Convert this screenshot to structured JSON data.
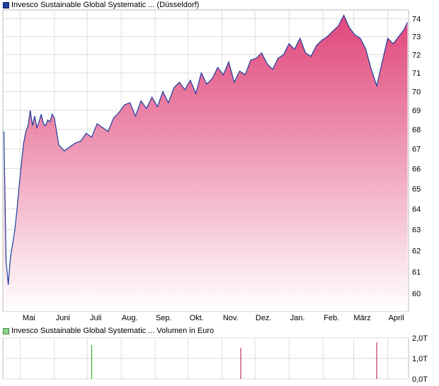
{
  "colors": {
    "price_line": "#1d3e9e",
    "area_top": "#e0457a",
    "area_bottom": "#ffffff",
    "grid": "#dedede",
    "volume_positive": "#2fb52f",
    "volume_negative": "#c0306a"
  },
  "chart_data": [
    {
      "type": "area",
      "title": "Invesco Sustainable Global Systematic ... (Düsseldorf)",
      "xlabel": "",
      "ylabel": "",
      "x_ticks": [
        "Mai",
        "Juni",
        "Juli",
        "Aug.",
        "Sep.",
        "Okt.",
        "Nov.",
        "Dez.",
        "Jan.",
        "Feb.",
        "März",
        "April"
      ],
      "y_ticks": [
        "60",
        "61",
        "62",
        "63",
        "64",
        "65",
        "66",
        "67",
        "68",
        "69",
        "70",
        "71",
        "72",
        "73",
        "74"
      ],
      "scale": "log",
      "ylim": [
        59.2,
        74.5
      ],
      "grid": true,
      "series": [
        {
          "name": "Invesco Sustainable Global Systematic ... (Düsseldorf)",
          "x": [
            "2024-04-16",
            "2024-04-18",
            "2024-04-20",
            "2024-04-22",
            "2024-04-24",
            "2024-04-26",
            "2024-04-28",
            "2024-04-30",
            "2024-05-02",
            "2024-05-04",
            "2024-05-06",
            "2024-05-08",
            "2024-05-10",
            "2024-05-12",
            "2024-05-14",
            "2024-05-16",
            "2024-05-18",
            "2024-05-20",
            "2024-05-22",
            "2024-05-24",
            "2024-05-26",
            "2024-05-28",
            "2024-05-30",
            "2024-06-01",
            "2024-06-05",
            "2024-06-10",
            "2024-06-15",
            "2024-06-20",
            "2024-06-25",
            "2024-06-30",
            "2024-07-05",
            "2024-07-10",
            "2024-07-15",
            "2024-07-20",
            "2024-07-25",
            "2024-07-30",
            "2024-08-04",
            "2024-08-09",
            "2024-08-14",
            "2024-08-19",
            "2024-08-24",
            "2024-08-29",
            "2024-09-03",
            "2024-09-08",
            "2024-09-13",
            "2024-09-18",
            "2024-09-23",
            "2024-09-28",
            "2024-10-03",
            "2024-10-08",
            "2024-10-13",
            "2024-10-18",
            "2024-10-23",
            "2024-10-28",
            "2024-11-02",
            "2024-11-07",
            "2024-11-12",
            "2024-11-17",
            "2024-11-22",
            "2024-11-27",
            "2024-12-02",
            "2024-12-07",
            "2024-12-12",
            "2024-12-17",
            "2024-12-22",
            "2024-12-27",
            "2025-01-01",
            "2025-01-06",
            "2025-01-11",
            "2025-01-16",
            "2025-01-21",
            "2025-01-26",
            "2025-01-31",
            "2025-02-05",
            "2025-02-10",
            "2025-02-15",
            "2025-02-20",
            "2025-02-25",
            "2025-03-02",
            "2025-03-07",
            "2025-03-12",
            "2025-03-17",
            "2025-03-22",
            "2025-03-27",
            "2025-04-01",
            "2025-04-06",
            "2025-04-11",
            "2025-04-16",
            "2025-04-19"
          ],
          "y": [
            67.9,
            61.5,
            60.4,
            61.7,
            62.3,
            63.0,
            64.0,
            65.2,
            66.3,
            67.3,
            67.9,
            68.2,
            69.0,
            68.2,
            68.7,
            68.1,
            68.4,
            68.8,
            68.3,
            68.2,
            68.5,
            68.4,
            68.8,
            68.6,
            67.2,
            66.9,
            67.1,
            67.3,
            67.4,
            67.8,
            67.6,
            68.3,
            68.1,
            67.9,
            68.6,
            68.9,
            69.3,
            69.4,
            68.7,
            69.5,
            69.1,
            69.7,
            69.2,
            70.0,
            69.4,
            70.2,
            70.5,
            70.1,
            70.6,
            69.9,
            71.0,
            70.4,
            70.7,
            71.3,
            70.9,
            71.6,
            70.5,
            71.1,
            70.9,
            71.7,
            71.8,
            72.1,
            71.5,
            71.2,
            71.8,
            72.0,
            72.6,
            72.3,
            72.9,
            72.1,
            71.9,
            72.5,
            72.8,
            73.0,
            73.3,
            73.6,
            74.2,
            73.5,
            73.1,
            72.9,
            72.3,
            71.2,
            70.3,
            71.6,
            72.9,
            72.6,
            73.0,
            73.4,
            73.8
          ]
        }
      ]
    },
    {
      "type": "bar",
      "title": "Invesco Sustainable Global Systematic ... Volumen in Euro",
      "xlabel": "",
      "ylabel": "",
      "y_ticks": [
        "0,0T",
        "1,0T",
        "2,0T"
      ],
      "ylim": [
        0,
        2000
      ],
      "grid": true,
      "series": [
        {
          "name": "Invesco Sustainable Global Systematic ... Volumen in Euro",
          "x": [
            "2024-07-05",
            "2024-11-18",
            "2025-03-22"
          ],
          "values": [
            1650,
            1520,
            1780
          ]
        }
      ]
    }
  ]
}
